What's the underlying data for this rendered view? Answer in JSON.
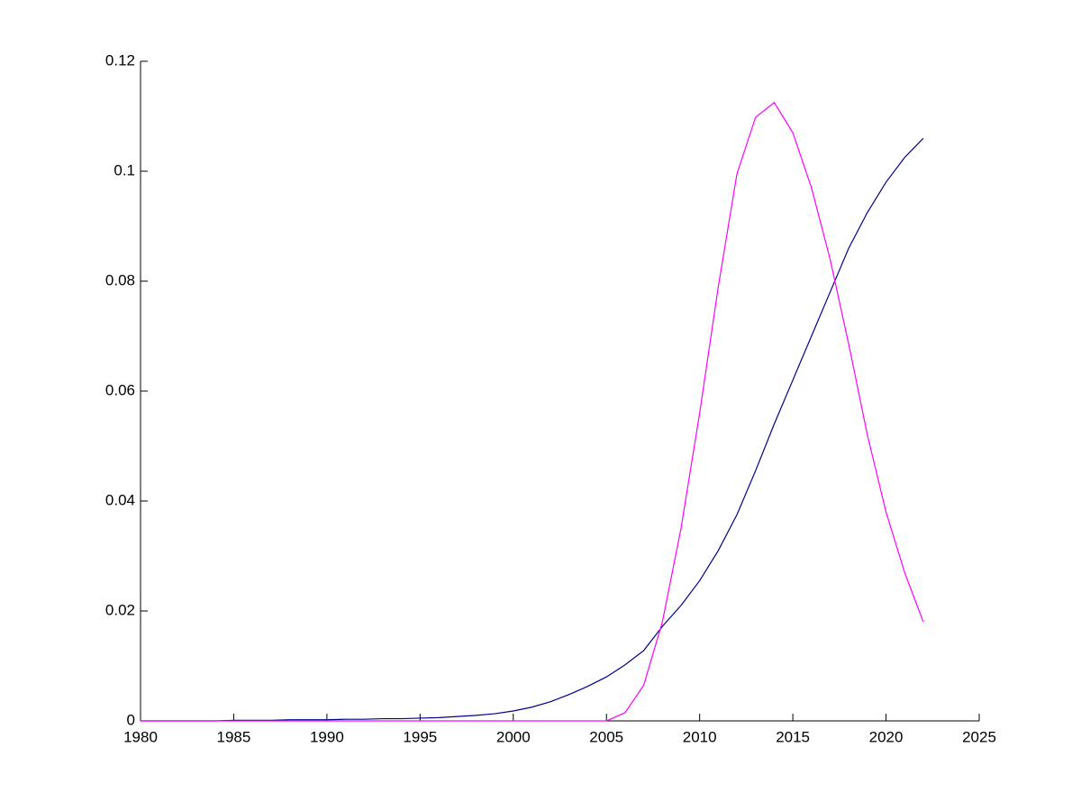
{
  "chart_data": {
    "type": "line",
    "x": [
      1980,
      1981,
      1982,
      1983,
      1984,
      1985,
      1986,
      1987,
      1988,
      1989,
      1990,
      1991,
      1992,
      1993,
      1994,
      1995,
      1996,
      1997,
      1998,
      1999,
      2000,
      2001,
      2002,
      2003,
      2004,
      2005,
      2006,
      2007,
      2008,
      2009,
      2010,
      2011,
      2012,
      2013,
      2014,
      2015,
      2016,
      2017,
      2018,
      2019,
      2020,
      2021,
      2022
    ],
    "series": [
      {
        "color": "#00008b",
        "values": [
          0,
          0,
          0,
          0,
          0,
          0.0001,
          0.0001,
          0.0001,
          0.0002,
          0.0002,
          0.0002,
          0.0003,
          0.0003,
          0.0004,
          0.0004,
          0.0005,
          0.0006,
          0.0008,
          0.001,
          0.0013,
          0.0018,
          0.0025,
          0.0035,
          0.0048,
          0.0063,
          0.008,
          0.0102,
          0.0128,
          0.0172,
          0.021,
          0.0255,
          0.031,
          0.0375,
          0.0455,
          0.054,
          0.062,
          0.07,
          0.078,
          0.086,
          0.0925,
          0.098,
          0.1025,
          0.106
        ]
      },
      {
        "color": "#ff00ff",
        "values": [
          0,
          0,
          0,
          0,
          0,
          0,
          0,
          0,
          0,
          0,
          0,
          0,
          0,
          0,
          0,
          0,
          0,
          0,
          0,
          0,
          0,
          0,
          0,
          0,
          0,
          0,
          0.0015,
          0.0065,
          0.018,
          0.035,
          0.056,
          0.079,
          0.0995,
          0.1098,
          0.1125,
          0.107,
          0.097,
          0.084,
          0.0685,
          0.052,
          0.038,
          0.027,
          0.018
        ]
      }
    ],
    "xlim": [
      1980,
      2025
    ],
    "xticks": [
      1980,
      1985,
      1990,
      1995,
      2000,
      2005,
      2010,
      2015,
      2020,
      2025
    ],
    "ylim": [
      0,
      0.12
    ],
    "yticks": [
      0,
      0.02,
      0.04,
      0.06,
      0.08,
      0.1,
      0.12
    ]
  }
}
